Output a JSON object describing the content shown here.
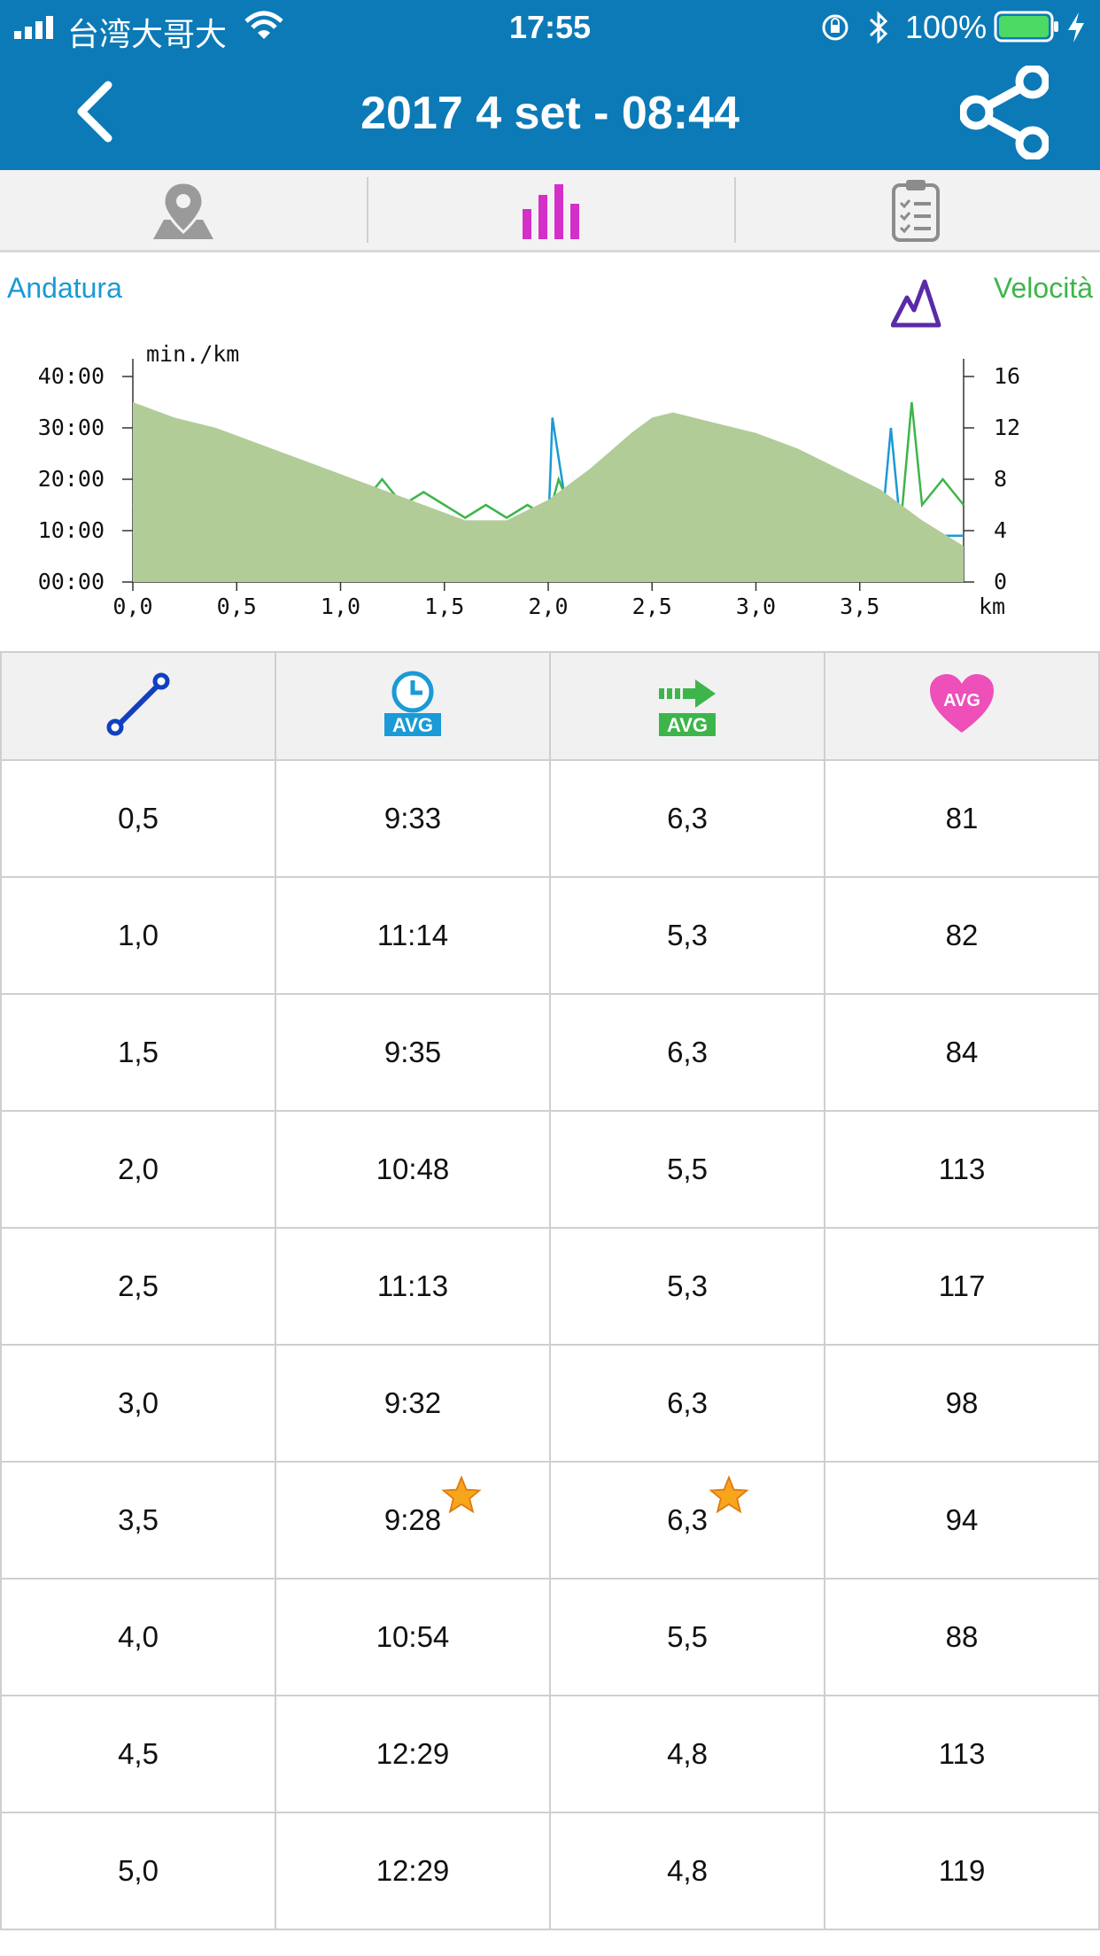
{
  "status": {
    "carrier": "台湾大哥大",
    "time": "17:55",
    "battery": "100%"
  },
  "header": {
    "title": "2017 4 set - 08:44",
    "back_icon": "chevron-left-icon",
    "share_icon": "share-icon"
  },
  "tabs": [
    {
      "icon": "map-pin-icon",
      "active": false
    },
    {
      "icon": "bar-chart-icon",
      "active": true
    },
    {
      "icon": "clipboard-icon",
      "active": false
    }
  ],
  "chart": {
    "left_label": "Andatura",
    "right_label": "Velocità",
    "mountain_icon": "elevation-icon",
    "unit_label": "min./km",
    "x_unit": "km",
    "left_ticks": [
      "40:00",
      "30:00",
      "20:00",
      "10:00",
      "00:00"
    ],
    "right_ticks": [
      "16",
      "12",
      "8",
      "4",
      "0"
    ],
    "x_ticks": [
      "0,0",
      "0,5",
      "1,0",
      "1,5",
      "2,0",
      "2,5",
      "3,0",
      "3,5"
    ]
  },
  "chart_data": {
    "type": "area",
    "xlabel": "km",
    "ylabel": "min./km",
    "xlim": [
      0,
      4.0
    ],
    "ylim_left": [
      0,
      40
    ],
    "ylim_right": [
      0,
      16
    ],
    "series": [
      {
        "name": "Andatura",
        "axis": "left",
        "color": "#1a9ad6",
        "x": [
          0.0,
          0.1,
          0.2,
          0.3,
          0.4,
          0.5,
          0.55,
          0.6,
          0.7,
          0.8,
          0.9,
          1.0,
          1.1,
          1.2,
          1.3,
          1.4,
          1.5,
          1.6,
          1.7,
          1.8,
          1.9,
          2.0,
          2.02,
          2.1,
          2.2,
          2.3,
          2.4,
          2.5,
          2.6,
          2.7,
          2.8,
          2.9,
          3.0,
          3.1,
          3.2,
          3.3,
          3.4,
          3.5,
          3.6,
          3.65,
          3.7,
          3.8,
          3.9,
          4.0
        ],
        "y": [
          10,
          9,
          10,
          8,
          9,
          9,
          23,
          10,
          9,
          10,
          9,
          16,
          9,
          10,
          9,
          9,
          12,
          10,
          10,
          11,
          12,
          10,
          32,
          11,
          12,
          10,
          9,
          10,
          11,
          9,
          10,
          9,
          10,
          9,
          10,
          9,
          10,
          9,
          8,
          30,
          9,
          10,
          9,
          9
        ]
      },
      {
        "name": "Velocità",
        "axis": "right",
        "color": "#3db54a",
        "x": [
          0.0,
          0.1,
          0.2,
          0.3,
          0.4,
          0.5,
          0.55,
          0.6,
          0.7,
          0.8,
          0.9,
          1.0,
          1.1,
          1.2,
          1.3,
          1.4,
          1.5,
          1.6,
          1.7,
          1.8,
          1.9,
          2.0,
          2.05,
          2.1,
          2.2,
          2.3,
          2.4,
          2.5,
          2.6,
          2.7,
          2.8,
          2.9,
          3.0,
          3.1,
          3.2,
          3.3,
          3.4,
          3.5,
          3.6,
          3.7,
          3.75,
          3.8,
          3.9,
          4.0
        ],
        "y": [
          6,
          5,
          7,
          5,
          8,
          6,
          7,
          5,
          7,
          6,
          7,
          7,
          6,
          8,
          6,
          7,
          6,
          5,
          6,
          5,
          6,
          5,
          8,
          6,
          7,
          5,
          6,
          8,
          6,
          9,
          5,
          7,
          11,
          7,
          6,
          8,
          7,
          5,
          6,
          5,
          14,
          6,
          8,
          6
        ]
      },
      {
        "name": "elevation",
        "axis": "left",
        "color": "#b1cc97",
        "fill": true,
        "x": [
          0.0,
          0.2,
          0.4,
          0.6,
          0.8,
          1.0,
          1.2,
          1.4,
          1.6,
          1.8,
          2.0,
          2.2,
          2.4,
          2.5,
          2.6,
          2.8,
          3.0,
          3.2,
          3.4,
          3.6,
          3.8,
          4.0
        ],
        "y": [
          35,
          32,
          30,
          27,
          24,
          21,
          18,
          15,
          12,
          12,
          16,
          22,
          29,
          32,
          33,
          31,
          29,
          26,
          22,
          18,
          12,
          7
        ]
      }
    ]
  },
  "table": {
    "header_icons": [
      "distance-icon",
      "avg-pace-icon",
      "avg-speed-icon",
      "avg-heart-rate-icon"
    ],
    "rows": [
      {
        "km": "0,5",
        "pace": "9:33",
        "speed": "6,3",
        "hr": "81",
        "star": false
      },
      {
        "km": "1,0",
        "pace": "11:14",
        "speed": "5,3",
        "hr": "82",
        "star": false
      },
      {
        "km": "1,5",
        "pace": "9:35",
        "speed": "6,3",
        "hr": "84",
        "star": false
      },
      {
        "km": "2,0",
        "pace": "10:48",
        "speed": "5,5",
        "hr": "113",
        "star": false
      },
      {
        "km": "2,5",
        "pace": "11:13",
        "speed": "5,3",
        "hr": "117",
        "star": false
      },
      {
        "km": "3,0",
        "pace": "9:32",
        "speed": "6,3",
        "hr": "98",
        "star": false
      },
      {
        "km": "3,5",
        "pace": "9:28",
        "speed": "6,3",
        "hr": "94",
        "star": true
      },
      {
        "km": "4,0",
        "pace": "10:54",
        "speed": "5,5",
        "hr": "88",
        "star": false
      },
      {
        "km": "4,5",
        "pace": "12:29",
        "speed": "4,8",
        "hr": "113",
        "star": false
      },
      {
        "km": "5,0",
        "pace": "12:29",
        "speed": "4,8",
        "hr": "119",
        "star": false
      }
    ]
  }
}
